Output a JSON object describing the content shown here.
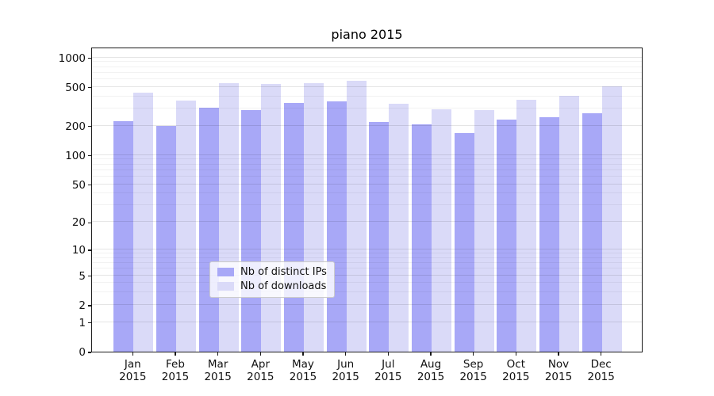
{
  "title": "piano 2015",
  "legend": {
    "items": [
      {
        "label": "Nb of distinct IPs",
        "color": "#a8a8f7"
      },
      {
        "label": "Nb of downloads",
        "color": "#dadaf8"
      }
    ]
  },
  "chart_data": {
    "type": "bar",
    "title": "piano 2015",
    "xlabel": "",
    "ylabel": "",
    "categories": [
      "Jan",
      "Feb",
      "Mar",
      "Apr",
      "May",
      "Jun",
      "Jul",
      "Aug",
      "Sep",
      "Oct",
      "Nov",
      "Dec"
    ],
    "category_year": "2015",
    "series": [
      {
        "name": "Nb of distinct IPs",
        "color": "#a8a8f7",
        "values": [
          222,
          199,
          308,
          289,
          342,
          357,
          221,
          209,
          168,
          231,
          247,
          270
        ]
      },
      {
        "name": "Nb of downloads",
        "color": "#dadaf8",
        "values": [
          433,
          362,
          545,
          535,
          542,
          580,
          338,
          296,
          292,
          372,
          402,
          510
        ]
      }
    ],
    "yticks": [
      0,
      1,
      2,
      5,
      10,
      20,
      50,
      100,
      200,
      500,
      1000
    ],
    "minor_gridline_values": [
      3,
      4,
      6,
      7,
      8,
      9,
      30,
      40,
      60,
      70,
      80,
      90,
      300,
      400,
      600,
      700,
      800,
      900
    ],
    "yscale": "log10(value+1)",
    "ylim": [
      0,
      1300
    ],
    "grid": true,
    "legend_position": "inside lower center"
  }
}
